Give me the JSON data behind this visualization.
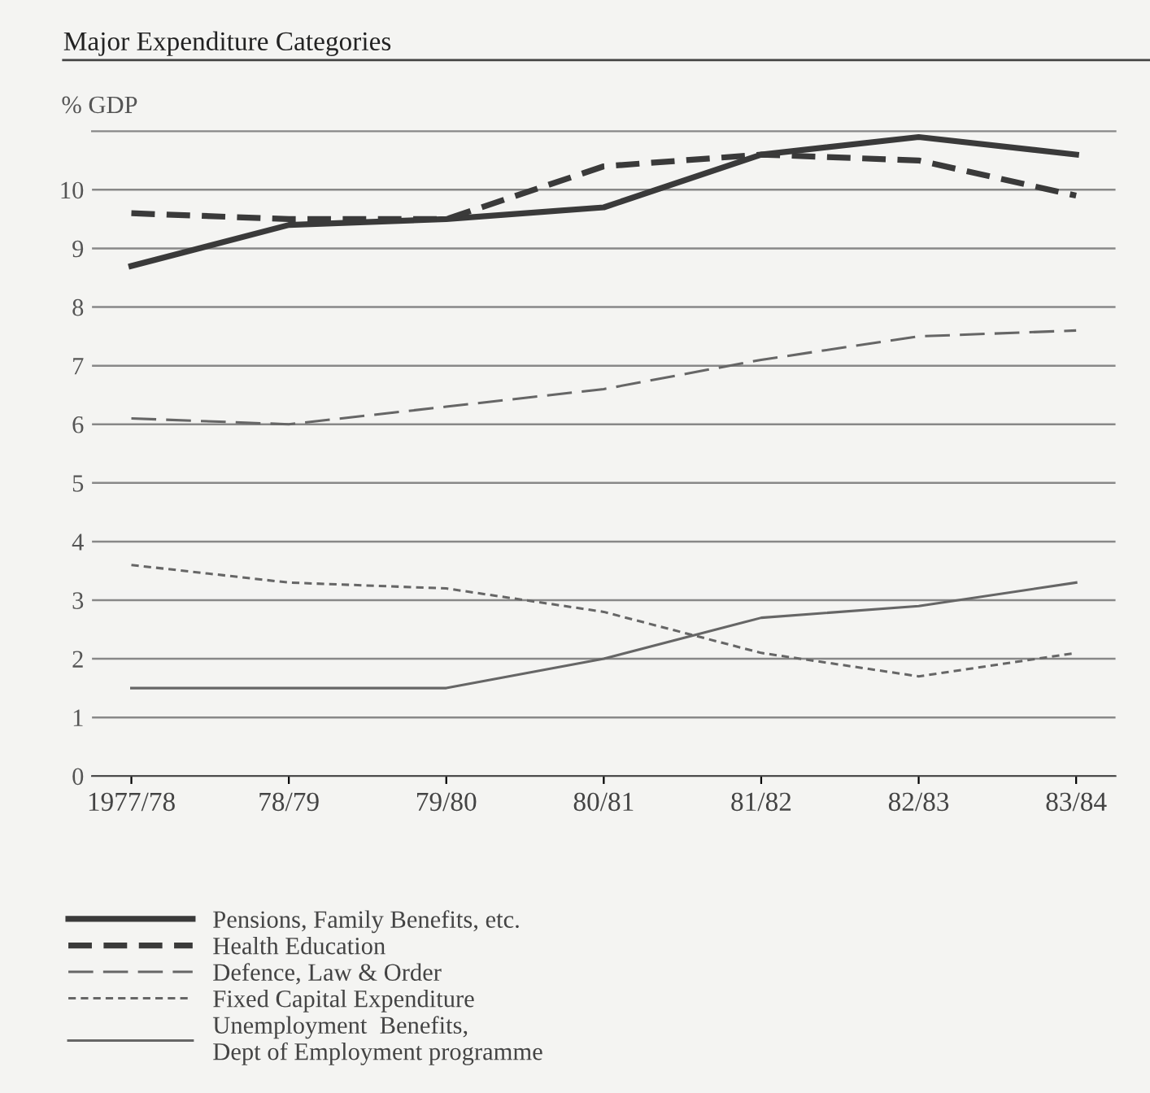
{
  "chart_data": {
    "type": "line",
    "title": "Major Expenditure Categories",
    "ylabel": "% GDP",
    "categories": [
      "1977/78",
      "78/79",
      "79/80",
      "80/81",
      "81/82",
      "82/83",
      "83/84"
    ],
    "ylim": [
      0,
      11
    ],
    "yticks": [
      0,
      1,
      2,
      3,
      4,
      5,
      6,
      7,
      8,
      9,
      10
    ],
    "grid": "y",
    "legend": "bottom left",
    "marker": "none",
    "series": [
      {
        "name": "Pensions, Family Benefits, etc.",
        "color": "#3a3a3a",
        "line_style": "solid",
        "values": [
          8.7,
          9.4,
          9.5,
          9.7,
          10.6,
          10.9,
          10.6
        ]
      },
      {
        "name": "Health Education",
        "color": "#3a3a3a",
        "line_style": "dashed",
        "values": [
          9.6,
          9.5,
          9.5,
          10.4,
          10.6,
          10.5,
          9.9
        ]
      },
      {
        "name": "Defence, Law & Order",
        "color": "#666666",
        "line_style": "dashed",
        "values": [
          6.1,
          6.0,
          6.3,
          6.6,
          7.1,
          7.5,
          7.6
        ]
      },
      {
        "name": "Fixed Capital Expenditure",
        "color": "#666666",
        "line_style": "dashed",
        "values": [
          3.6,
          3.3,
          3.2,
          2.8,
          2.1,
          1.7,
          2.1
        ]
      },
      {
        "name": "Unemployment  Benefits,\nDept of Employment programme",
        "color": "#666666",
        "line_style": "solid",
        "values": [
          1.5,
          1.5,
          1.5,
          2.0,
          2.7,
          2.9,
          3.3
        ]
      }
    ]
  }
}
